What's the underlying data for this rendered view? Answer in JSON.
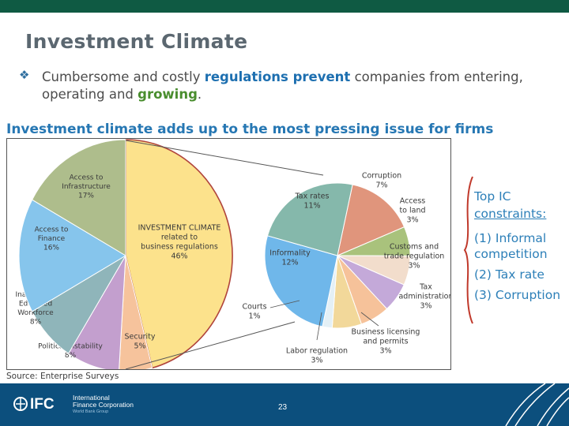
{
  "slide": {
    "title": "Investment Climate",
    "bullet_parts": [
      {
        "text": "Cumbersome and costly ",
        "style": "normal"
      },
      {
        "text": "regulations prevent",
        "style": "blue"
      },
      {
        "text": " companies from entering, operating and ",
        "style": "normal"
      },
      {
        "text": "growing",
        "style": "green"
      },
      {
        "text": ".",
        "style": "normal"
      }
    ],
    "subtitle": "Investment climate adds up to the most pressing issue for firms",
    "source": "Source: Enterprise Surveys",
    "constraints": {
      "heading_line1": "Top IC",
      "heading_line2": "constraints:",
      "items": [
        "(1) Informal competition",
        "(2) Tax rate",
        "(3) Corruption"
      ]
    },
    "footer": {
      "logo_text": "IFC",
      "org_line1": "International",
      "org_line2": "Finance Corporation",
      "org_sub": "World Bank Group",
      "page_number": "23"
    }
  },
  "colors": {
    "topbar": "#0f5a43",
    "footer": "#0c4f7d",
    "bracket": "#c0392b"
  },
  "chart_data": [
    {
      "type": "pie",
      "slices": [
        {
          "label_lines": [
            "INVESTMENT CLIMATE",
            "related to",
            "business regulations",
            "46%"
          ],
          "value": 46,
          "color": "#fce28c"
        },
        {
          "label_lines": [
            "Security",
            "5%"
          ],
          "value": 5,
          "color": "#f6c39c"
        },
        {
          "label_lines": [
            "Political Instability",
            "8%"
          ],
          "value": 8,
          "color": "#c39fce"
        },
        {
          "label_lines": [
            "Inadequate",
            "Educated",
            "Workforce",
            "8%"
          ],
          "value": 8,
          "color": "#8fb5ba"
        },
        {
          "label_lines": [
            "Access to",
            "Finance",
            "16%"
          ],
          "value": 16,
          "color": "#86c5ec"
        },
        {
          "label_lines": [
            "Access to",
            "Infrastructure",
            "17%"
          ],
          "value": 17,
          "color": "#aebd8c"
        }
      ]
    },
    {
      "type": "pie",
      "slices": [
        {
          "label_lines": [
            "Corruption",
            "7%"
          ],
          "value": 7,
          "color": "#e0957c"
        },
        {
          "label_lines": [
            "Access",
            "to land",
            "3%"
          ],
          "value": 3,
          "color": "#a9c27c"
        },
        {
          "label_lines": [
            "Customs and",
            "trade regulation",
            "3%"
          ],
          "value": 3,
          "color": "#f2ddcc"
        },
        {
          "label_lines": [
            "Tax",
            "administration",
            "3%"
          ],
          "value": 3,
          "color": "#c4a9d9"
        },
        {
          "label_lines": [
            "Business licensing",
            "and permits",
            "3%"
          ],
          "value": 3,
          "color": "#f6c29a"
        },
        {
          "label_lines": [
            "Labor regulation",
            "3%"
          ],
          "value": 3,
          "color": "#f2d89a"
        },
        {
          "label_lines": [
            "Courts",
            "1%"
          ],
          "value": 1,
          "color": "#e4f0f6"
        },
        {
          "label_lines": [
            "Informality",
            "12%"
          ],
          "value": 12,
          "color": "#6fb7ea"
        },
        {
          "label_lines": [
            "Tax rates",
            "11%"
          ],
          "value": 11,
          "color": "#85b8ab"
        }
      ]
    }
  ]
}
